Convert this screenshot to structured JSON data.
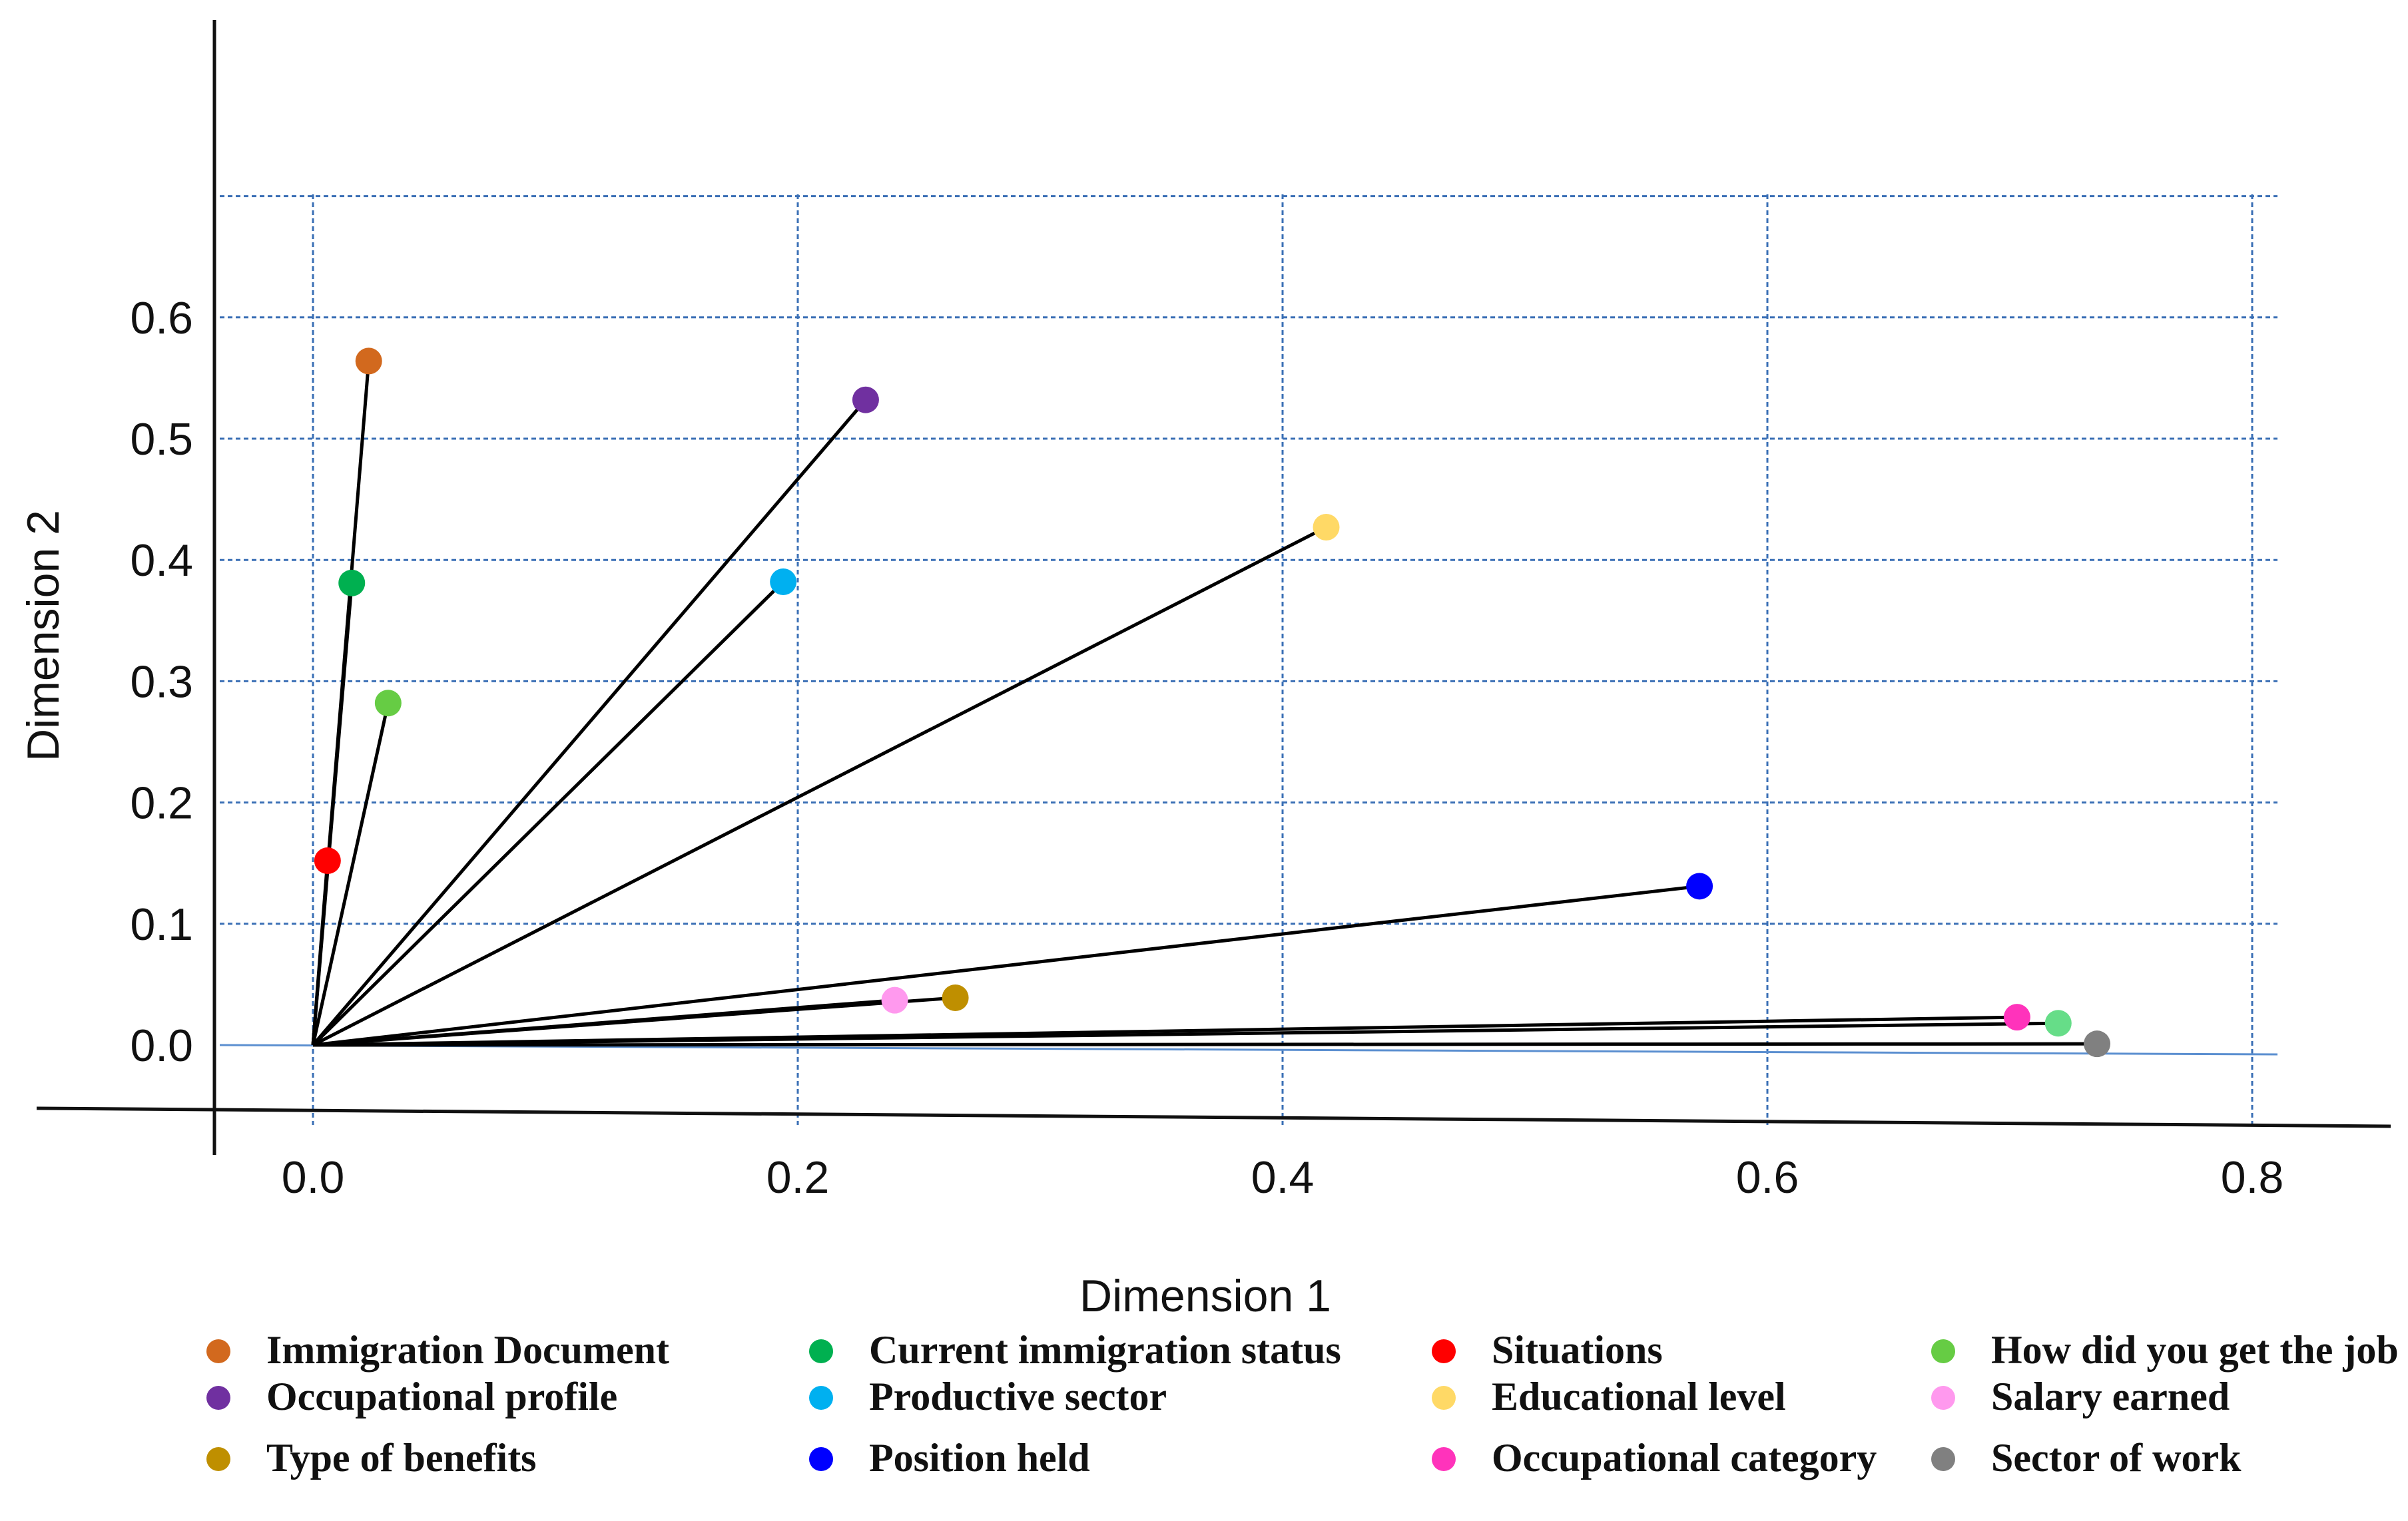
{
  "chart_data": {
    "type": "scatter",
    "title": "",
    "xlabel": "Dimension 1",
    "ylabel": "Dimension 2",
    "xlim": [
      0.0,
      0.8
    ],
    "ylim": [
      0.0,
      0.6
    ],
    "x_ticks": [
      "0.0",
      "0.2",
      "0.4",
      "0.6",
      "0.8"
    ],
    "y_ticks": [
      "0.0",
      "0.1",
      "0.2",
      "0.3",
      "0.4",
      "0.5",
      "0.6"
    ],
    "grid": true,
    "vectors_from_origin": true,
    "legend_position": "bottom",
    "series": [
      {
        "name": "Immigration Document",
        "color": "#d2691e",
        "x": 0.023,
        "y": 0.564
      },
      {
        "name": "Current immigration status",
        "color": "#00b050",
        "x": 0.016,
        "y": 0.381
      },
      {
        "name": "Situations",
        "color": "#ff0000",
        "x": 0.006,
        "y": 0.152
      },
      {
        "name": "How did you get the job",
        "color": "#66cc44",
        "x": 0.031,
        "y": 0.282
      },
      {
        "name": "Occupational profile",
        "color": "#7030a0",
        "x": 0.228,
        "y": 0.532
      },
      {
        "name": "Productive sector",
        "color": "#00b0f0",
        "x": 0.194,
        "y": 0.382
      },
      {
        "name": "Educational level",
        "color": "#ffd966",
        "x": 0.418,
        "y": 0.427
      },
      {
        "name": "Salary earned",
        "color": "#ff99ee",
        "x": 0.24,
        "y": 0.037
      },
      {
        "name": "Type of benefits",
        "color": "#bf8f00",
        "x": 0.265,
        "y": 0.039
      },
      {
        "name": "Position held",
        "color": "#0000ff",
        "x": 0.572,
        "y": 0.131
      },
      {
        "name": "Occupational category",
        "color": "#ff33bb",
        "x": 0.703,
        "y": 0.023
      },
      {
        "name": "Sector of work",
        "color": "#808080",
        "x": 0.736,
        "y": 0.001
      },
      {
        "name": "",
        "color": "#66dd88",
        "x": 0.72,
        "y": 0.018
      }
    ],
    "legend": [
      {
        "label": "Immigration Document",
        "color": "#d2691e"
      },
      {
        "label": "Current immigration status",
        "color": "#00b050"
      },
      {
        "label": "Situations",
        "color": "#ff0000"
      },
      {
        "label": "How did you get the job",
        "color": "#66cc44"
      },
      {
        "label": "Occupational profile",
        "color": "#7030a0"
      },
      {
        "label": "Productive sector",
        "color": "#00b0f0"
      },
      {
        "label": "Educational level",
        "color": "#ffd966"
      },
      {
        "label": "Salary earned",
        "color": "#ff99ee"
      },
      {
        "label": "Type of benefits",
        "color": "#bf8f00"
      },
      {
        "label": "Position held",
        "color": "#0000ff"
      },
      {
        "label": "Occupational category",
        "color": "#ff33bb"
      },
      {
        "label": "Sector of work",
        "color": "#808080"
      }
    ]
  }
}
